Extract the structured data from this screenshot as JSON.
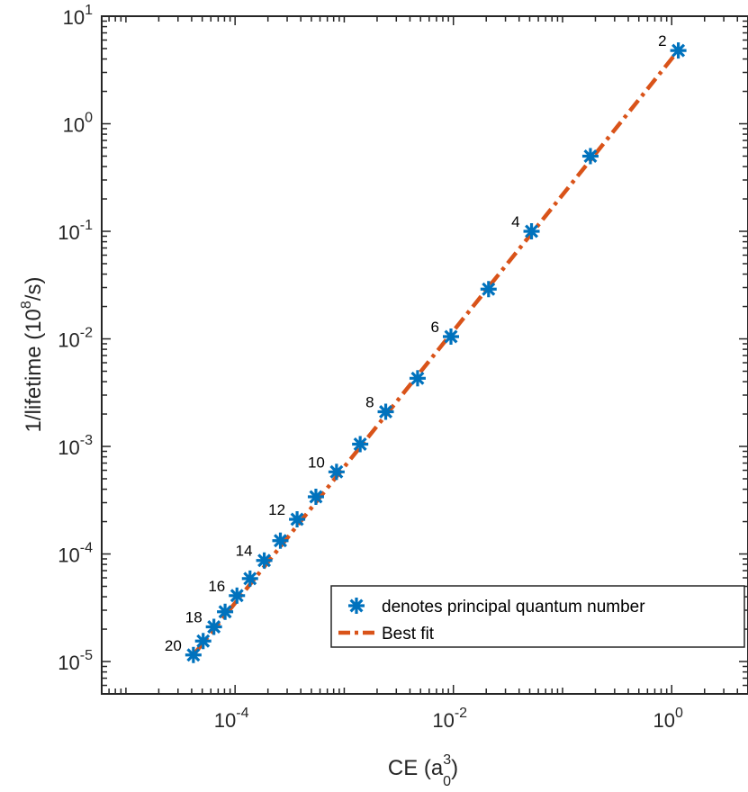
{
  "chart_data": {
    "type": "scatter",
    "xscale": "log",
    "yscale": "log",
    "xlim": [
      6e-06,
      5
    ],
    "ylim": [
      5e-06,
      10
    ],
    "xlabel": "CE (a",
    "xlabel_sup": "3",
    "xlabel_sub": "0",
    "xlabel_end": ")",
    "ylabel": "1/lifetime (10",
    "ylabel_sup": "8",
    "ylabel_end": "/s)",
    "xticks": [
      {
        "value": 0.0001,
        "base": "10",
        "exp": "-4"
      },
      {
        "value": 0.01,
        "base": "10",
        "exp": "-2"
      },
      {
        "value": 1,
        "base": "10",
        "exp": "0"
      }
    ],
    "yticks": [
      {
        "value": 1e-05,
        "base": "10",
        "exp": "-5"
      },
      {
        "value": 0.0001,
        "base": "10",
        "exp": "-4"
      },
      {
        "value": 0.001,
        "base": "10",
        "exp": "-3"
      },
      {
        "value": 0.01,
        "base": "10",
        "exp": "-2"
      },
      {
        "value": 0.1,
        "base": "10",
        "exp": "-1"
      },
      {
        "value": 1,
        "base": "10",
        "exp": "0"
      },
      {
        "value": 10,
        "base": "10",
        "exp": "1"
      }
    ],
    "series": [
      {
        "name": "denotes principal quantum number",
        "marker": "asterisk",
        "color": "#0072BD",
        "points": [
          {
            "x": 1.15,
            "y": 4.8,
            "label": "2"
          },
          {
            "x": 0.18,
            "y": 0.5
          },
          {
            "x": 0.052,
            "y": 0.1,
            "label": "4"
          },
          {
            "x": 0.021,
            "y": 0.029
          },
          {
            "x": 0.0095,
            "y": 0.0105,
            "label": "6"
          },
          {
            "x": 0.0047,
            "y": 0.0043
          },
          {
            "x": 0.0024,
            "y": 0.0021,
            "label": "8"
          },
          {
            "x": 0.0014,
            "y": 0.00105
          },
          {
            "x": 0.00085,
            "y": 0.00058,
            "label": "10"
          },
          {
            "x": 0.00055,
            "y": 0.00034
          },
          {
            "x": 0.00037,
            "y": 0.00021,
            "label": "12"
          },
          {
            "x": 0.00026,
            "y": 0.000133
          },
          {
            "x": 0.000185,
            "y": 8.7e-05,
            "label": "14"
          },
          {
            "x": 0.000137,
            "y": 5.9e-05
          },
          {
            "x": 0.000104,
            "y": 4.1e-05,
            "label": "16"
          },
          {
            "x": 8.1e-05,
            "y": 2.9e-05
          },
          {
            "x": 6.4e-05,
            "y": 2.1e-05,
            "label": "18"
          },
          {
            "x": 5.1e-05,
            "y": 1.55e-05
          },
          {
            "x": 4.15e-05,
            "y": 1.15e-05,
            "label": "20"
          }
        ]
      },
      {
        "name": "Best fit",
        "type": "line",
        "style": "dash-dot",
        "color": "#D95319",
        "points": [
          {
            "x": 4.15e-05,
            "y": 1.15e-05
          },
          {
            "x": 1.15,
            "y": 4.8
          }
        ]
      }
    ],
    "legend": {
      "placement": "bottom-right",
      "entries": [
        "denotes principal quantum number",
        "Best fit"
      ]
    },
    "grid": false
  }
}
